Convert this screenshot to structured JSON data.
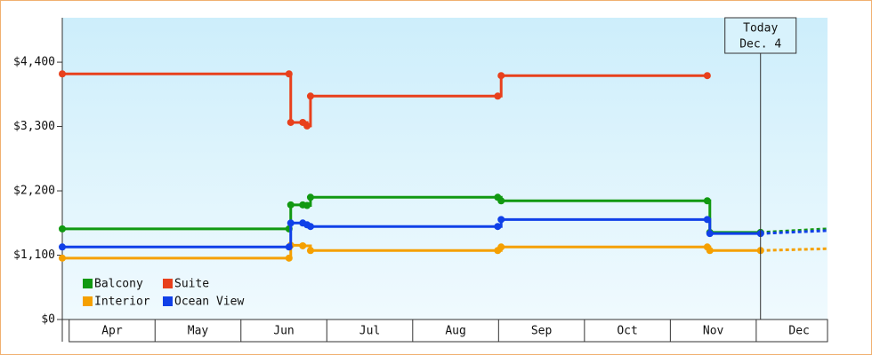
{
  "chart_data": {
    "type": "line",
    "step": true,
    "xlim": [
      -0.08,
      8.83
    ],
    "xticks": [
      {
        "value": 0.5,
        "label": "Apr"
      },
      {
        "value": 1.5,
        "label": "May"
      },
      {
        "value": 2.5,
        "label": "Jun"
      },
      {
        "value": 3.5,
        "label": "Jul"
      },
      {
        "value": 4.5,
        "label": "Aug"
      },
      {
        "value": 5.5,
        "label": "Sep"
      },
      {
        "value": 6.5,
        "label": "Oct"
      },
      {
        "value": 7.5,
        "label": "Nov"
      },
      {
        "value": 8.5,
        "label": "Dec"
      }
    ],
    "ylim": [
      0,
      5160
    ],
    "yticks": [
      {
        "value": 0,
        "label": "$0"
      },
      {
        "value": 1100,
        "label": "$1,100"
      },
      {
        "value": 2200,
        "label": "$2,200"
      },
      {
        "value": 3300,
        "label": "$3,300"
      },
      {
        "value": 4400,
        "label": "$4,400"
      }
    ],
    "today": {
      "x": 8.05,
      "label": [
        "Today",
        "Dec. 4"
      ]
    },
    "series": [
      {
        "name": "Balcony",
        "color": "#119911",
        "x": [
          -0.08,
          2.56,
          2.58,
          2.72,
          2.77,
          2.81,
          4.99,
          5.03,
          7.43,
          7.46,
          8.05
        ],
        "values": [
          1550,
          1550,
          1960,
          1960,
          1950,
          2090,
          2090,
          2030,
          2030,
          1490,
          1490
        ],
        "forecast": {
          "x": [
            8.05,
            8.83
          ],
          "values": [
            1490,
            1550
          ]
        }
      },
      {
        "name": "Suite",
        "color": "#e8401c",
        "x": [
          -0.08,
          2.56,
          2.58,
          2.72,
          2.77,
          2.81,
          4.99,
          5.03,
          7.43
        ],
        "values": [
          4200,
          4200,
          3370,
          3370,
          3310,
          3820,
          3820,
          4170,
          4170
        ]
      },
      {
        "name": "Interior",
        "color": "#f5a000",
        "x": [
          -0.08,
          2.56,
          2.58,
          2.72,
          2.81,
          4.99,
          5.03,
          7.43,
          7.46,
          8.05
        ],
        "values": [
          1050,
          1050,
          1270,
          1260,
          1180,
          1180,
          1240,
          1240,
          1180,
          1180
        ],
        "forecast": {
          "x": [
            8.05,
            8.83
          ],
          "values": [
            1180,
            1210
          ]
        }
      },
      {
        "name": "Ocean View",
        "color": "#1040e8",
        "x": [
          -0.08,
          2.56,
          2.58,
          2.72,
          2.77,
          2.81,
          4.99,
          5.03,
          7.43,
          7.46,
          8.05
        ],
        "values": [
          1240,
          1240,
          1650,
          1650,
          1620,
          1590,
          1590,
          1710,
          1710,
          1470,
          1470
        ],
        "forecast": {
          "x": [
            8.05,
            8.83
          ],
          "values": [
            1470,
            1520
          ]
        }
      }
    ],
    "legend": "lower left"
  }
}
